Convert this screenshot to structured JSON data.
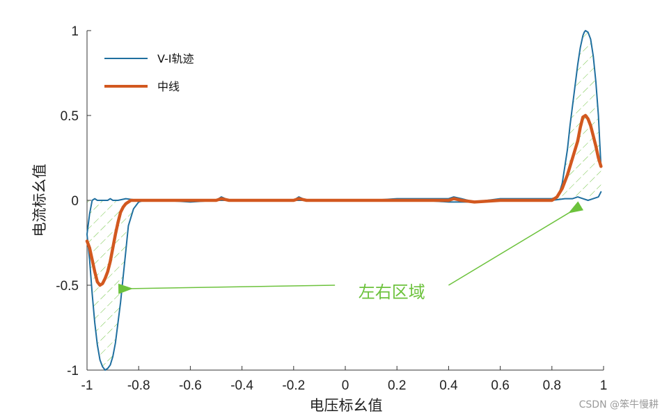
{
  "chart_data": {
    "type": "line",
    "xlabel": "电压标幺值",
    "ylabel": "电流标幺值",
    "xlim": [
      -1,
      1
    ],
    "ylim": [
      -1,
      1
    ],
    "grid": false,
    "legend_placement": "top-left",
    "x_ticks": [
      "-1",
      "-0.8",
      "-0.6",
      "-0.4",
      "-0.2",
      "0",
      "0.2",
      "0.4",
      "0.6",
      "0.8",
      "1"
    ],
    "x_tick_values": [
      -1,
      -0.8,
      -0.6,
      -0.4,
      -0.2,
      0,
      0.2,
      0.4,
      0.6,
      0.8,
      1
    ],
    "y_ticks": [
      "1",
      "0.5",
      "0",
      "-0.5",
      "-1"
    ],
    "y_tick_values": [
      1,
      0.5,
      0,
      -0.5,
      -1
    ],
    "series": [
      {
        "name": "V-I轨迹",
        "color": "#1f6f9f",
        "x": [
          0.99,
          0.985,
          0.98,
          0.97,
          0.96,
          0.95,
          0.94,
          0.93,
          0.925,
          0.92,
          0.91,
          0.9,
          0.89,
          0.88,
          0.87,
          0.86,
          0.85,
          0.84,
          0.83,
          0.82,
          0.8,
          0.78,
          0.75,
          0.7,
          0.6,
          0.5,
          0.45,
          0.42,
          0.4,
          0.3,
          0.2,
          0.1,
          0,
          -0.1,
          -0.15,
          -0.18,
          -0.2,
          -0.3,
          -0.4,
          -0.45,
          -0.48,
          -0.5,
          -0.6,
          -0.7,
          -0.75,
          -0.78,
          -0.8,
          -0.82,
          -0.84,
          -0.85,
          -0.86,
          -0.87,
          -0.88,
          -0.89,
          -0.9,
          -0.91,
          -0.92,
          -0.93,
          -0.94,
          -0.95,
          -0.96,
          -0.97,
          -0.98,
          -0.99,
          -1.0,
          -0.99,
          -0.98,
          -0.97,
          -0.96,
          -0.95,
          -0.94,
          -0.93,
          -0.92,
          -0.91,
          -0.9,
          -0.88,
          -0.85,
          -0.8,
          -0.7,
          -0.6,
          -0.5,
          -0.4,
          -0.3,
          -0.2,
          -0.1,
          0,
          0.1,
          0.2,
          0.3,
          0.4,
          0.5,
          0.6,
          0.7,
          0.8,
          0.85,
          0.88,
          0.9,
          0.92,
          0.94,
          0.96,
          0.98,
          0.99
        ],
        "y": [
          0.2,
          0.35,
          0.5,
          0.7,
          0.85,
          0.95,
          0.99,
          1.0,
          0.99,
          0.97,
          0.9,
          0.8,
          0.68,
          0.56,
          0.44,
          0.3,
          0.2,
          0.1,
          0.05,
          0.02,
          0.01,
          0.01,
          0.01,
          0.01,
          0.01,
          -0.01,
          0.01,
          0.02,
          0.01,
          0.01,
          0.01,
          0.0,
          0.0,
          0.0,
          0.0,
          0.02,
          0.0,
          0.0,
          0.0,
          0.0,
          0.02,
          0.0,
          0.0,
          0.0,
          0.0,
          0.0,
          -0.01,
          -0.05,
          -0.15,
          -0.3,
          -0.45,
          -0.6,
          -0.72,
          -0.84,
          -0.92,
          -0.97,
          -0.99,
          -1.0,
          -0.98,
          -0.94,
          -0.85,
          -0.72,
          -0.55,
          -0.35,
          -0.2,
          -0.08,
          0.0,
          0.01,
          0.0,
          0.0,
          0.0,
          0.0,
          0.0,
          0.01,
          0.0,
          0.0,
          0.01,
          0.0,
          0.0,
          -0.01,
          0.0,
          0.0,
          0.0,
          0.0,
          0.0,
          0.0,
          0.0,
          0.0,
          0.0,
          -0.01,
          -0.01,
          0.0,
          0.0,
          0.0,
          0.01,
          0.01,
          0.02,
          0.01,
          0.0,
          0.01,
          0.02,
          0.05
        ]
      },
      {
        "name": "中线",
        "color": "#d2581f",
        "x": [
          -1.0,
          -0.99,
          -0.98,
          -0.97,
          -0.96,
          -0.95,
          -0.94,
          -0.93,
          -0.92,
          -0.91,
          -0.9,
          -0.89,
          -0.88,
          -0.87,
          -0.86,
          -0.85,
          -0.84,
          -0.83,
          -0.82,
          -0.8,
          -0.78,
          -0.75,
          -0.7,
          -0.6,
          -0.5,
          -0.48,
          -0.45,
          -0.4,
          -0.3,
          -0.2,
          -0.18,
          -0.15,
          -0.1,
          0,
          0.1,
          0.2,
          0.3,
          0.4,
          0.42,
          0.45,
          0.5,
          0.6,
          0.7,
          0.75,
          0.78,
          0.8,
          0.82,
          0.84,
          0.86,
          0.88,
          0.9,
          0.91,
          0.92,
          0.93,
          0.94,
          0.95,
          0.96,
          0.97,
          0.98,
          0.99
        ],
        "y": [
          -0.24,
          -0.28,
          -0.35,
          -0.42,
          -0.48,
          -0.5,
          -0.49,
          -0.46,
          -0.42,
          -0.36,
          -0.28,
          -0.2,
          -0.13,
          -0.07,
          -0.04,
          -0.02,
          -0.01,
          0.0,
          0.0,
          0.0,
          0.0,
          0.0,
          0.0,
          0.0,
          0.0,
          0.01,
          0.0,
          0.0,
          0.0,
          0.0,
          0.01,
          0.0,
          0.0,
          0.0,
          0.0,
          0.0,
          0.0,
          0.0,
          0.01,
          0.0,
          -0.01,
          0.0,
          0.0,
          0.0,
          0.0,
          0.0,
          0.02,
          0.07,
          0.15,
          0.25,
          0.35,
          0.43,
          0.49,
          0.5,
          0.48,
          0.44,
          0.38,
          0.32,
          0.25,
          0.2
        ]
      }
    ],
    "annotation": {
      "text": "左右区域",
      "color": "#6cc23c",
      "arrows": [
        {
          "from": [
            -0.04,
            -0.5
          ],
          "to": [
            -0.83,
            -0.52
          ]
        },
        {
          "from": [
            0.4,
            -0.5
          ],
          "to": [
            0.87,
            -0.07
          ]
        }
      ]
    }
  },
  "watermark": "CSDN @笨牛慢耕"
}
